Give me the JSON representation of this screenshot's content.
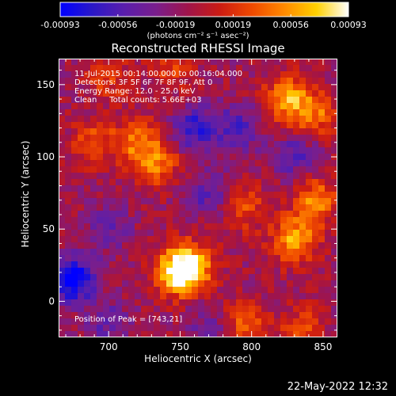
{
  "colorbar": {
    "ticks": [
      "-0.00093",
      "-0.00056",
      "-0.00019",
      "0.00019",
      "0.00056",
      "0.00093"
    ],
    "unit": "(photons cm⁻² s⁻¹ asec⁻²)",
    "colors": [
      "#0000ff",
      "#2a18c8",
      "#5a1eac",
      "#7a1e8c",
      "#a0144a",
      "#cc1c12",
      "#f04a00",
      "#ff8a00",
      "#ffd000",
      "#ffffff"
    ]
  },
  "title": "Reconstructed RHESSI Image",
  "annotations": {
    "line1": "11-Jul-2015 00:14:00.000 to 00:16:04.000",
    "line2": "Detectors: 3F 5F 6F 7F 8F 9F, Att 0",
    "line3": "Energy Range: 12.0 - 25.0 keV",
    "line4": "Clean     Total counts: 5.66E+03",
    "peak": "Position of Peak = [743,21]"
  },
  "footer": "22-May-2022 12:32",
  "chart_data": {
    "type": "heatmap",
    "title": "Reconstructed RHESSI Image",
    "xlabel": "Heliocentric X (arcsec)",
    "ylabel": "Heliocentric Y (arcsec)",
    "xlim": [
      665,
      860
    ],
    "ylim": [
      -25,
      168
    ],
    "xticks": [
      700,
      750,
      800,
      850
    ],
    "yticks": [
      0,
      50,
      100,
      150
    ],
    "color_range": [
      -0.00093,
      0.00093
    ],
    "peak": [
      743,
      21
    ],
    "blobs": [
      {
        "x": 748,
        "y": 20,
        "value": 0.00093
      },
      {
        "x": 758,
        "y": 25,
        "value": 0.0007
      },
      {
        "x": 830,
        "y": 42,
        "value": 0.00075
      },
      {
        "x": 845,
        "y": 70,
        "value": 0.0006
      },
      {
        "x": 825,
        "y": 140,
        "value": 0.0007
      },
      {
        "x": 845,
        "y": 130,
        "value": 0.0005
      },
      {
        "x": 720,
        "y": 110,
        "value": 0.00055
      },
      {
        "x": 735,
        "y": 95,
        "value": 0.0005
      },
      {
        "x": 690,
        "y": 110,
        "value": 0.0004
      },
      {
        "x": 700,
        "y": 155,
        "value": 0.00035
      },
      {
        "x": 745,
        "y": 160,
        "value": 0.0003
      },
      {
        "x": 795,
        "y": 65,
        "value": 0.0004
      },
      {
        "x": 795,
        "y": -15,
        "value": 0.00045
      },
      {
        "x": 835,
        "y": -20,
        "value": 0.0004
      },
      {
        "x": 790,
        "y": 120,
        "value": -0.00045
      },
      {
        "x": 830,
        "y": 100,
        "value": -0.0004
      },
      {
        "x": 760,
        "y": 120,
        "value": -0.00055
      },
      {
        "x": 770,
        "y": 75,
        "value": -0.0004
      },
      {
        "x": 675,
        "y": 15,
        "value": -0.0009
      },
      {
        "x": 700,
        "y": -15,
        "value": -0.00035
      },
      {
        "x": 700,
        "y": 50,
        "value": -0.0003
      },
      {
        "x": 770,
        "y": -20,
        "value": -0.0003
      }
    ]
  }
}
